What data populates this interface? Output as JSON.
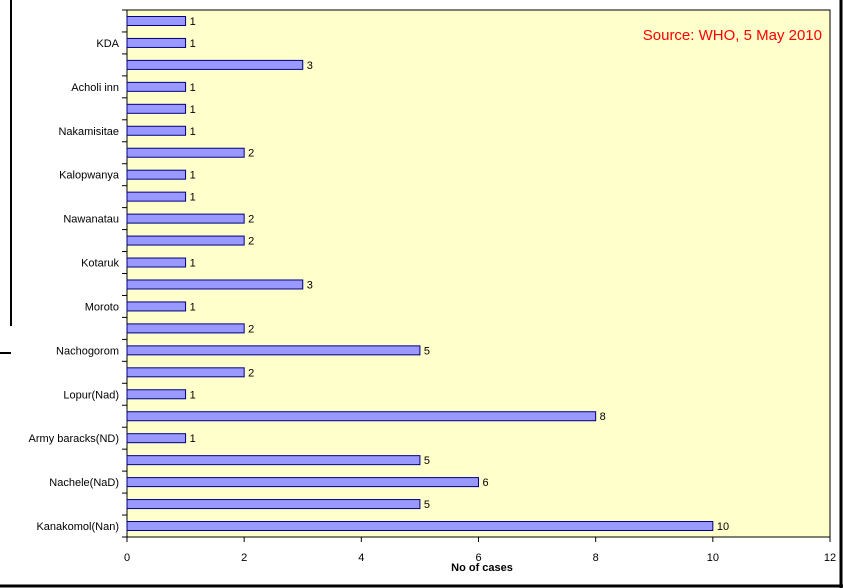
{
  "chart_data": {
    "type": "bar",
    "orientation": "horizontal",
    "title": "",
    "annotation": "Source: WHO, 5 May 2010",
    "xlabel": "No of cases",
    "ylabel": "",
    "xlim": [
      0,
      12
    ],
    "x_ticks": [
      "0",
      "2",
      "4",
      "6",
      "8",
      "10",
      "12"
    ],
    "grid": false,
    "legend": "none",
    "colors": {
      "plot_background": "#ffffcc",
      "bar_fill": "#9999ff",
      "bar_stroke": "#000080",
      "annotation": "#ff0000"
    },
    "bars": [
      {
        "label": "",
        "value": 1
      },
      {
        "label": "KDA",
        "value": 1
      },
      {
        "label": "",
        "value": 3
      },
      {
        "label": "Acholi inn",
        "value": 1
      },
      {
        "label": "",
        "value": 1
      },
      {
        "label": "Nakamisitae",
        "value": 1
      },
      {
        "label": "",
        "value": 2
      },
      {
        "label": "Kalopwanya",
        "value": 1
      },
      {
        "label": "",
        "value": 1
      },
      {
        "label": "Nawanatau",
        "value": 2
      },
      {
        "label": "",
        "value": 2
      },
      {
        "label": "Kotaruk",
        "value": 1
      },
      {
        "label": "",
        "value": 3
      },
      {
        "label": "Moroto",
        "value": 1
      },
      {
        "label": "",
        "value": 2
      },
      {
        "label": "Nachogorom",
        "value": 5
      },
      {
        "label": "",
        "value": 2
      },
      {
        "label": "Lopur(Nad)",
        "value": 1
      },
      {
        "label": "",
        "value": 8
      },
      {
        "label": "Army baracks(ND)",
        "value": 1
      },
      {
        "label": "",
        "value": 5
      },
      {
        "label": "Nachele(NaD)",
        "value": 6
      },
      {
        "label": "",
        "value": 5
      },
      {
        "label": "Kanakomol(Nan)",
        "value": 10
      }
    ]
  }
}
